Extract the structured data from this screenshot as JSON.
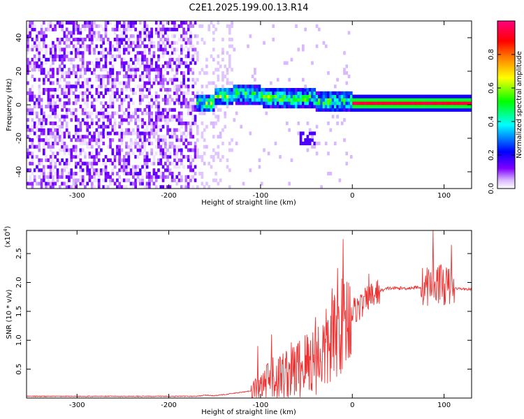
{
  "chart_data": [
    {
      "type": "heatmap",
      "title": "C2E1.2025.199.00.13.R14",
      "xlabel": "Height of straight line (km)",
      "ylabel": "Frequency (Hz)",
      "xlim": [
        -355,
        130
      ],
      "ylim": [
        -50,
        50
      ],
      "xticks": [
        -300,
        -200,
        -100,
        0,
        100
      ],
      "yticks": [
        -40,
        -20,
        0,
        20,
        40
      ],
      "colorbar": {
        "label": "Normalized spectral amplitude",
        "range": [
          0,
          1
        ],
        "ticks": [
          0.0,
          0.2,
          0.4,
          0.6,
          0.8
        ],
        "colors": [
          "#ffffff",
          "#8000ff",
          "#0000ff",
          "#00ffff",
          "#00ff00",
          "#ffff00",
          "#ff8000",
          "#ff0000",
          "#ff0080"
        ]
      },
      "regions": [
        {
          "name": "noise",
          "x": [
            -355,
            -170
          ],
          "f": [
            -50,
            50
          ],
          "amplitude": 0.15
        },
        {
          "name": "transition",
          "x": [
            -170,
            0
          ],
          "f_center": [
            0,
            5,
            6,
            2,
            0
          ],
          "amplitude": 0.4
        },
        {
          "name": "carrier",
          "x": [
            0,
            130
          ],
          "f": 0,
          "amplitude": 0.9
        }
      ]
    },
    {
      "type": "line",
      "xlabel": "Height of straight line (km)",
      "ylabel": "SNR (10 * v/v)",
      "yscale_label": "(x10",
      "yscale_exp": "4",
      "xlim": [
        -355,
        130
      ],
      "ylim": [
        0,
        2.9
      ],
      "xticks": [
        -300,
        -200,
        -100,
        0,
        100
      ],
      "yticks": [
        0.5,
        1.0,
        1.5,
        2.0,
        2.5
      ],
      "color": "#ee3333",
      "series": [
        {
          "x": [
            -355,
            -170,
            -160,
            -150,
            -120,
            -100,
            -90,
            -80,
            -70,
            -60,
            -50,
            -40,
            -30,
            -20,
            -15,
            -10,
            -5,
            0,
            10,
            20,
            30,
            40,
            60,
            80,
            90,
            100,
            110,
            130
          ],
          "y": [
            0.03,
            0.03,
            0.05,
            0.04,
            0.1,
            0.15,
            0.3,
            0.35,
            0.45,
            0.5,
            0.6,
            0.7,
            0.8,
            1.0,
            1.2,
            1.3,
            1.4,
            1.5,
            1.6,
            1.75,
            1.85,
            1.9,
            1.9,
            1.93,
            2.0,
            1.95,
            1.9,
            1.88
          ],
          "spikes": [
            {
              "x": -103,
              "y": 0.9
            },
            {
              "x": -88,
              "y": 1.1
            },
            {
              "x": -40,
              "y": 1.4
            },
            {
              "x": -22,
              "y": 1.9
            },
            {
              "x": -16,
              "y": 2.25
            },
            {
              "x": -10,
              "y": 2.75
            },
            {
              "x": 18,
              "y": 2.15
            },
            {
              "x": 88,
              "y": 2.9
            },
            {
              "x": 95,
              "y": 2.3
            },
            {
              "x": 108,
              "y": 2.65
            }
          ]
        }
      ]
    }
  ]
}
